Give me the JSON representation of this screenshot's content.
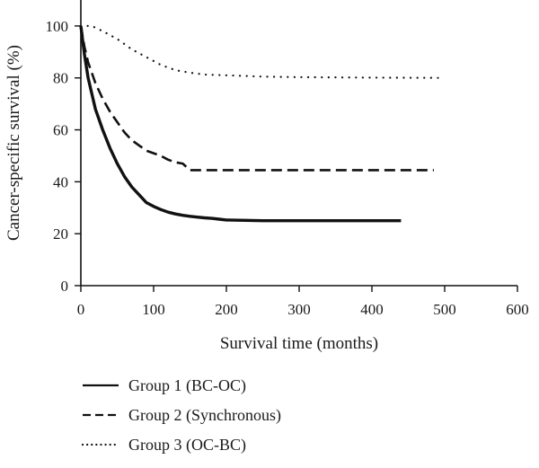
{
  "chart_data": {
    "type": "line",
    "title": "",
    "xlabel": "Survival time (months)",
    "ylabel": "Cancer-specific survival (%)",
    "xlim": [
      0,
      600
    ],
    "ylim": [
      0,
      110
    ],
    "xticks": [
      0,
      100,
      200,
      300,
      400,
      500,
      600
    ],
    "yticks": [
      0,
      20,
      40,
      60,
      80,
      100
    ],
    "grid": false,
    "legend_position": "bottom-left",
    "series": [
      {
        "name": "Group 1 (BC-OC)",
        "line_style": "solid",
        "color": "#111111",
        "x": [
          0,
          5,
          10,
          20,
          30,
          40,
          50,
          60,
          70,
          80,
          90,
          100,
          110,
          120,
          130,
          140,
          150,
          160,
          170,
          180,
          190,
          200,
          250,
          300,
          350,
          400,
          440
        ],
        "y": [
          100,
          89,
          80,
          68,
          60,
          53,
          47,
          42,
          38,
          35,
          32,
          30.5,
          29.3,
          28.3,
          27.6,
          27.1,
          26.7,
          26.4,
          26.1,
          25.9,
          25.6,
          25.3,
          25,
          25,
          25,
          25,
          25
        ]
      },
      {
        "name": "Group 2 (Synchronous)",
        "line_style": "dashed",
        "color": "#111111",
        "x": [
          0,
          5,
          10,
          20,
          30,
          40,
          50,
          60,
          70,
          80,
          90,
          100,
          110,
          120,
          130,
          140,
          150,
          160,
          200,
          300,
          400,
          485
        ],
        "y": [
          100,
          92,
          86,
          78,
          72,
          67,
          63,
          59,
          56,
          54,
          52,
          51,
          50,
          48.5,
          47.5,
          47,
          44.5,
          44.5,
          44.5,
          44.5,
          44.5,
          44.5
        ]
      },
      {
        "name": "Group 3 (OC-BC)",
        "line_style": "dotted",
        "color": "#111111",
        "x": [
          0,
          15,
          30,
          50,
          70,
          90,
          110,
          130,
          150,
          170,
          200,
          250,
          300,
          400,
          500
        ],
        "y": [
          100,
          100,
          98,
          95,
          91,
          88,
          85,
          83,
          82,
          81.3,
          81,
          80.5,
          80.3,
          80.1,
          80
        ]
      }
    ]
  }
}
